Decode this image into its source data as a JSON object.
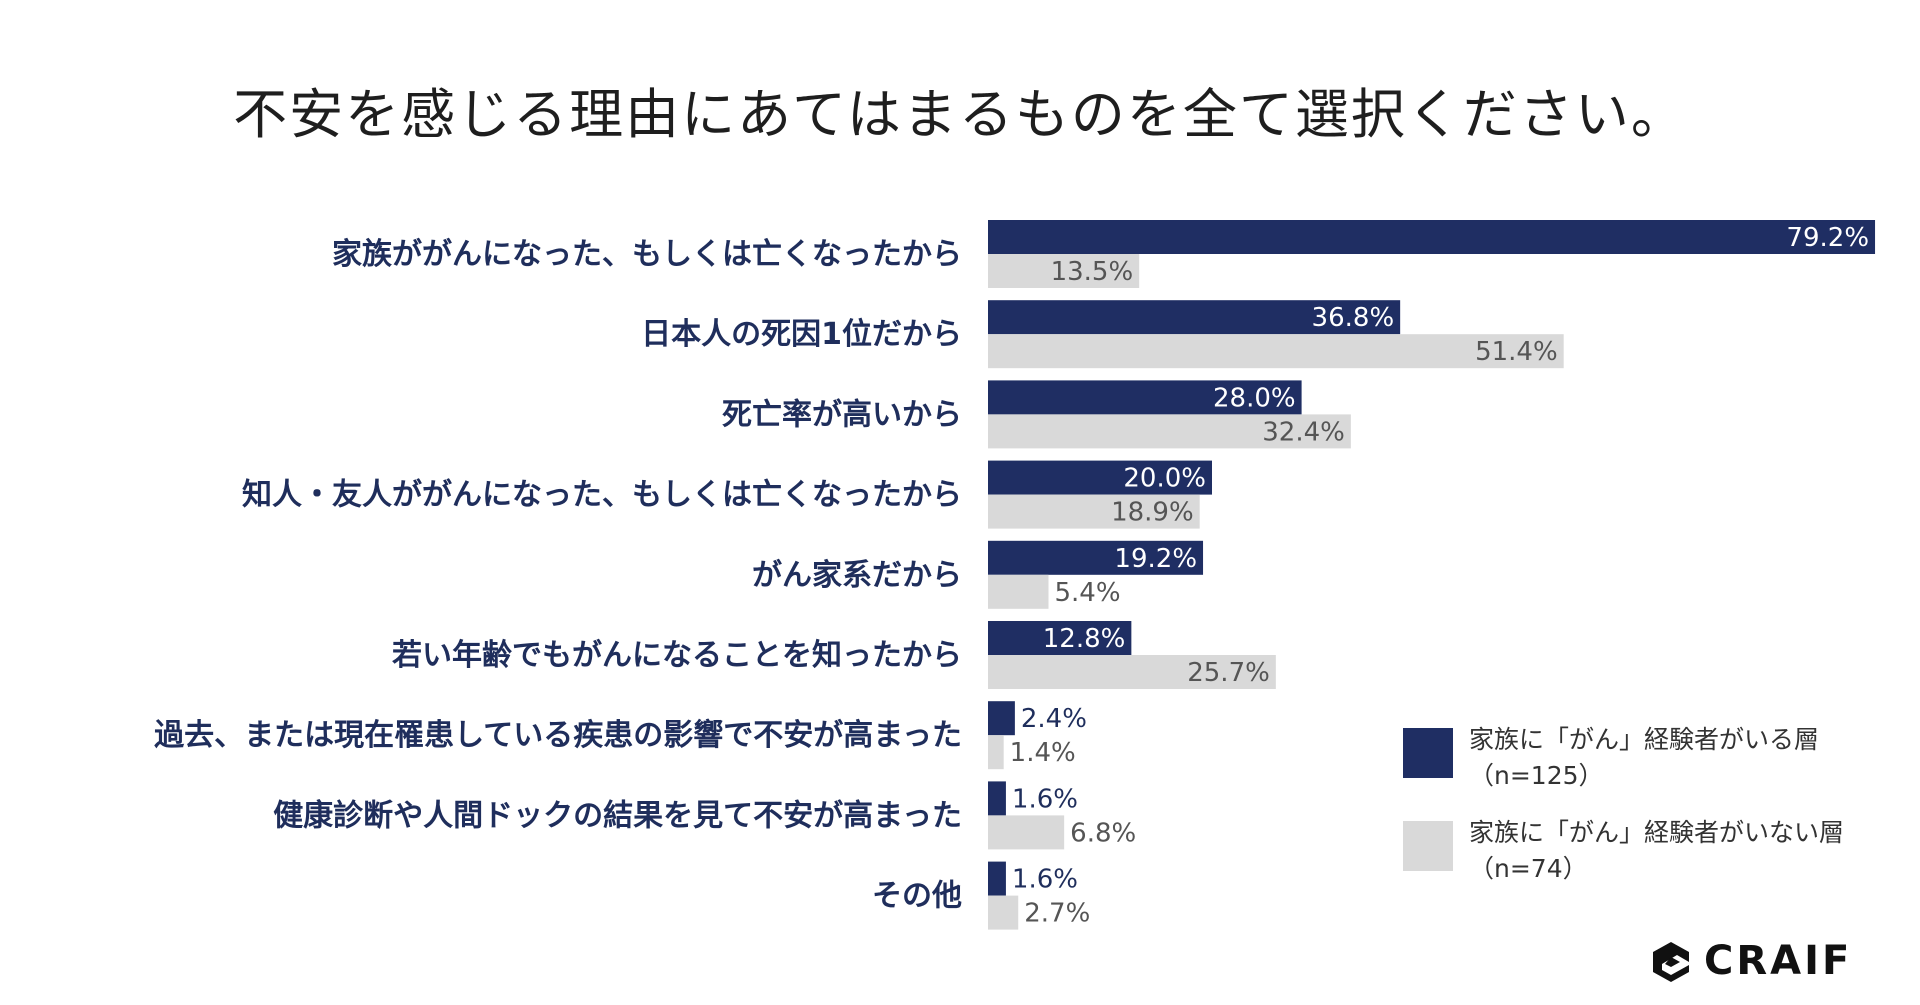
{
  "colors": {
    "series1": "#1f2e63",
    "series2": "#d9d9d9",
    "category_text": "#1f2e5c"
  },
  "brand": {
    "name": "CRAIF",
    "icon": "craif-logo-icon"
  },
  "chart_data": {
    "type": "bar",
    "orientation": "horizontal",
    "title": "不安を感じる理由にあてはまるものを全て選択ください。",
    "categories": [
      "家族ががんになった、もしくは亡くなったから",
      "日本人の死因1位だから",
      "死亡率が高いから",
      "知人・友人ががんになった、もしくは亡くなったから",
      "がん家系だから",
      "若い年齢でもがんになることを知ったから",
      "過去、または現在罹患している疾患の影響で不安が高まった",
      "健康診断や人間ドックの結果を見て不安が高まった",
      "その他"
    ],
    "series": [
      {
        "name": "家族に「がん」経験者がいる層",
        "n": "（n=125）",
        "values": [
          79.2,
          36.8,
          28.0,
          20.0,
          19.2,
          12.8,
          2.4,
          1.6,
          1.6
        ],
        "labels": [
          "79.2%",
          "36.8%",
          "28.0%",
          "20.0%",
          "19.2%",
          "12.8%",
          "2.4%",
          "1.6%",
          "1.6%"
        ]
      },
      {
        "name": "家族に「がん」経験者がいない層",
        "n": "（n=74）",
        "values": [
          13.5,
          51.4,
          32.4,
          18.9,
          5.4,
          25.7,
          1.4,
          6.8,
          2.7
        ],
        "labels": [
          "13.5%",
          "51.4%",
          "32.4%",
          "18.9%",
          "5.4%",
          "25.7%",
          "1.4%",
          "6.8%",
          "2.7%"
        ]
      }
    ],
    "xlim": [
      0,
      80
    ],
    "grid": false,
    "legend_position": "bottom-right"
  }
}
